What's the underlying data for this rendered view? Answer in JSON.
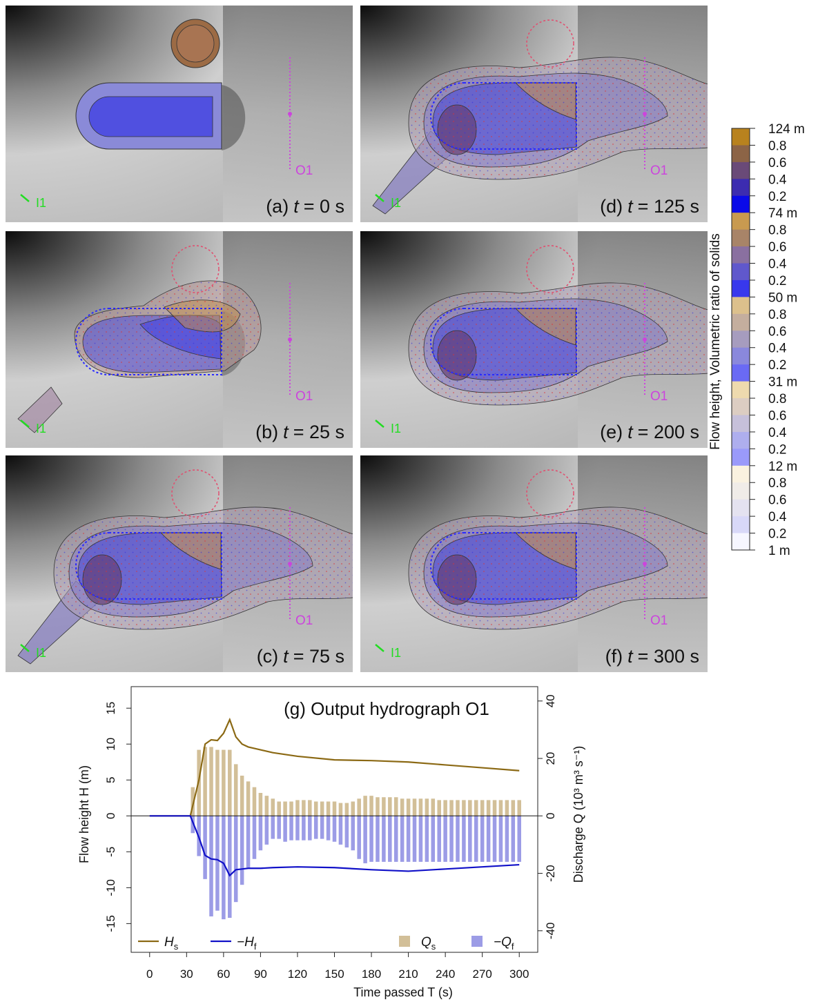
{
  "panels": [
    {
      "letter": "(a)",
      "var": "t",
      "time": "= 0 s",
      "outlet": "O1",
      "inlet": "I1"
    },
    {
      "letter": "(b)",
      "var": "t",
      "time": "= 25 s",
      "outlet": "O1",
      "inlet": "I1"
    },
    {
      "letter": "(c)",
      "var": "t",
      "time": "= 75 s",
      "outlet": "O1",
      "inlet": "I1"
    },
    {
      "letter": "(d)",
      "var": "t",
      "time": "= 125 s",
      "outlet": "O1",
      "inlet": "I1"
    },
    {
      "letter": "(e)",
      "var": "t",
      "time": "= 200 s",
      "outlet": "O1",
      "inlet": "I1"
    },
    {
      "letter": "(f)",
      "var": "t",
      "time": "= 300 s",
      "outlet": "O1",
      "inlet": "I1"
    }
  ],
  "colorbar": {
    "label": "Flow height, Volumetric ratio of solids",
    "ticks": [
      "124 m",
      "0.8",
      "0.6",
      "0.4",
      "0.2",
      "74 m",
      "0.8",
      "0.6",
      "0.4",
      "0.2",
      "50 m",
      "0.8",
      "0.6",
      "0.4",
      "0.2",
      "31 m",
      "0.8",
      "0.6",
      "0.4",
      "0.2",
      "12 m",
      "0.8",
      "0.6",
      "0.4",
      "0.2",
      "1 m"
    ],
    "colors": [
      "#b8821e",
      "#8c6446",
      "#6a4a78",
      "#3c2cb0",
      "#0a0ae8",
      "#c89a50",
      "#a88468",
      "#8a70a0",
      "#6058cc",
      "#3838ec",
      "#dcc08c",
      "#c4ae9e",
      "#a69cbe",
      "#8a88dc",
      "#6a6af4",
      "#eedaae",
      "#dccdc2",
      "#c6c0da",
      "#aeaeee",
      "#9a9afa",
      "#faf2e0",
      "#f0ece8",
      "#e4e2f0",
      "#d8d8f8",
      "#f6f6ff"
    ]
  },
  "chart_data": {
    "type": "combo",
    "title": "(g) Output hydrograph O1",
    "xlabel": "Time passed T (s)",
    "ylabel": "Flow height H (m)",
    "y2label": "Discharge Q (10³ m³ s⁻¹)",
    "xlim": [
      -15,
      315
    ],
    "ylim": [
      -19,
      18
    ],
    "y2lim": [
      -47.5,
      45
    ],
    "xticks": [
      0,
      30,
      60,
      90,
      120,
      150,
      180,
      210,
      240,
      270,
      300
    ],
    "yticks": [
      -15,
      -10,
      -5,
      0,
      5,
      10,
      15
    ],
    "y2ticks": [
      -40,
      -20,
      0,
      20,
      40
    ],
    "legend": "bottom",
    "x": [
      0,
      30,
      33,
      40,
      45,
      50,
      55,
      60,
      65,
      70,
      75,
      80,
      90,
      100,
      120,
      150,
      180,
      210,
      240,
      270,
      300
    ],
    "series": [
      {
        "name": "H",
        "subscript": "s",
        "kind": "line",
        "color": "#8b6914",
        "values": [
          0,
          0,
          0,
          5,
          10,
          10.6,
          10.5,
          11.5,
          13.4,
          11,
          10,
          9.6,
          9.2,
          8.8,
          8.3,
          7.8,
          7.7,
          7.5,
          7.1,
          6.7,
          6.3
        ]
      },
      {
        "name": "−H",
        "subscript": "f",
        "kind": "line",
        "color": "#1010c8",
        "values": [
          0,
          0,
          0,
          -3,
          -5.5,
          -6,
          -6.1,
          -6.6,
          -8.3,
          -7.5,
          -7.4,
          -7.3,
          -7.3,
          -7.2,
          -7.1,
          -7.2,
          -7.5,
          -7.7,
          -7.4,
          -7.1,
          -6.8
        ]
      },
      {
        "name": "Q",
        "subscript": "s",
        "kind": "bar",
        "axis": "y2",
        "color": "#d2bf98",
        "x": [
          35,
          40,
          45,
          50,
          55,
          60,
          65,
          70,
          75,
          80,
          85,
          90,
          95,
          100,
          105,
          110,
          115,
          120,
          125,
          130,
          135,
          140,
          145,
          150,
          155,
          160,
          165,
          170,
          175,
          180,
          185,
          190,
          195,
          200,
          205,
          210,
          215,
          220,
          225,
          230,
          235,
          240,
          245,
          250,
          255,
          260,
          265,
          270,
          275,
          280,
          285,
          290,
          295,
          300
        ],
        "values": [
          10,
          23,
          24,
          24,
          23,
          23,
          23,
          18,
          14,
          12,
          10,
          8,
          7,
          6,
          5,
          5,
          5,
          5.5,
          5.5,
          5.5,
          5,
          5,
          5,
          5,
          4.5,
          4.5,
          5,
          6,
          7,
          7,
          6.5,
          6.5,
          6.5,
          6.5,
          6,
          6,
          6,
          6,
          6,
          6,
          5.5,
          5.5,
          5.5,
          5.5,
          5.5,
          5.5,
          5.5,
          5.5,
          5.5,
          5.5,
          5.5,
          5.5,
          5.5,
          5.5
        ]
      },
      {
        "name": "−Q",
        "subscript": "f",
        "kind": "bar",
        "axis": "y2",
        "color": "#9c9ce6",
        "x": [
          35,
          40,
          45,
          50,
          55,
          60,
          65,
          70,
          75,
          80,
          85,
          90,
          95,
          100,
          105,
          110,
          115,
          120,
          125,
          130,
          135,
          140,
          145,
          150,
          155,
          160,
          165,
          170,
          175,
          180,
          185,
          190,
          195,
          200,
          205,
          210,
          215,
          220,
          225,
          230,
          235,
          240,
          245,
          250,
          255,
          260,
          265,
          270,
          275,
          280,
          285,
          290,
          295,
          300
        ],
        "values": [
          -6,
          -14,
          -22,
          -35,
          -33,
          -36,
          -35.5,
          -30,
          -24,
          -18,
          -15,
          -12,
          -10,
          -8,
          -8,
          -9,
          -8.5,
          -8.5,
          -8.5,
          -8.5,
          -8,
          -8,
          -8.5,
          -9,
          -10,
          -11,
          -12,
          -15,
          -16.5,
          -16,
          -16,
          -16,
          -16,
          -16,
          -16,
          -16,
          -16,
          -16,
          -16,
          -16,
          -16,
          -16,
          -16,
          -16,
          -16,
          -16,
          -16,
          -16,
          -16,
          -16,
          -16,
          -16,
          -16,
          -16
        ]
      }
    ]
  }
}
